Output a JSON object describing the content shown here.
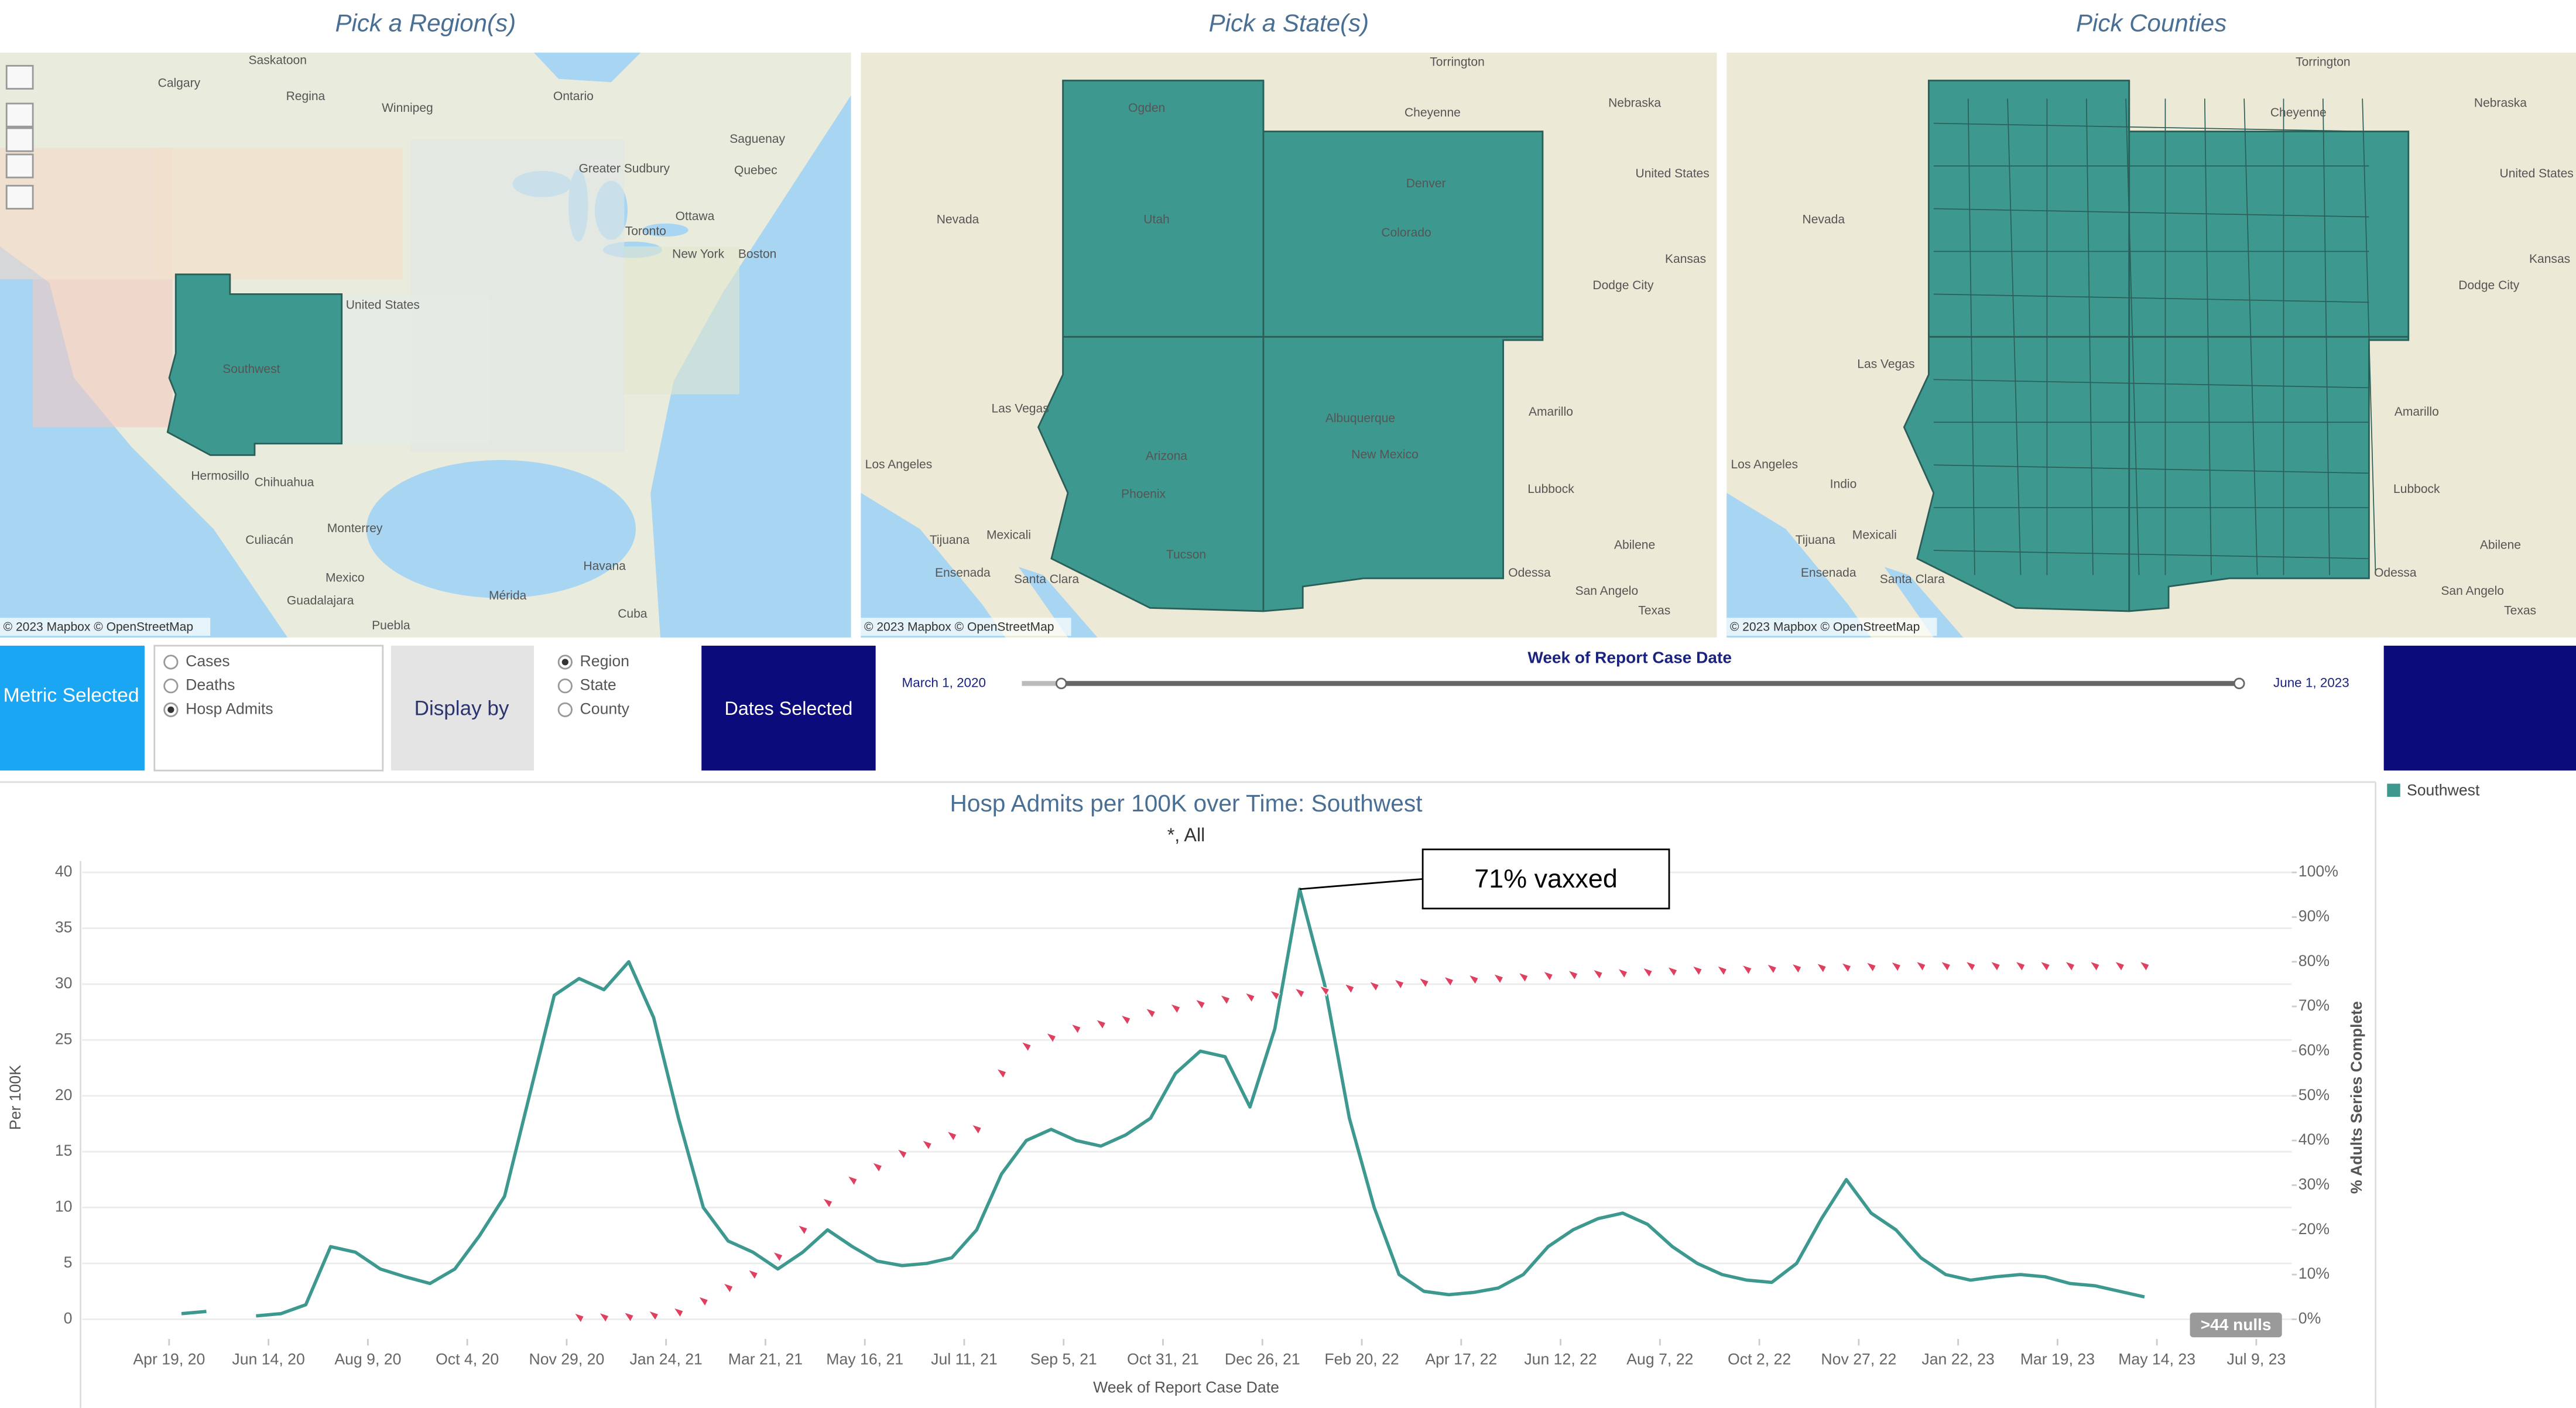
{
  "maps": [
    {
      "title": "Pick a Region(s)",
      "credit": "© 2023 Mapbox © OpenStreetMap",
      "labels": [
        "Calgary",
        "Saskatoon",
        "Regina",
        "Winnipeg",
        "Ontario",
        "Greater Sudbury",
        "Saguenay",
        "Quebec",
        "Toronto",
        "Ottawa",
        "Boston",
        "New York",
        "United States",
        "Southwest",
        "Hermosillo",
        "Chihuahua",
        "Culiacán",
        "Monterrey",
        "Mexico",
        "Guadalajara",
        "Puebla",
        "Mérida",
        "Havana",
        "Cuba"
      ]
    },
    {
      "title": "Pick a State(s)",
      "credit": "© 2023 Mapbox © OpenStreetMap",
      "labels": [
        "Torrington",
        "Nebraska",
        "Cheyenne",
        "United States",
        "Nevada",
        "Utah",
        "Colorado",
        "Denver",
        "Kansas",
        "Las Vegas",
        "Arizona",
        "New Mexico",
        "Albuquerque",
        "Amarillo",
        "Los Angeles",
        "Lubbock",
        "Phoenix",
        "Tucson",
        "Tijuana",
        "Mexicali",
        "Ensenada",
        "Santa Clara",
        "Odessa",
        "Abilene",
        "San Angelo",
        "Texas",
        "Ogden",
        "Dodge City"
      ]
    },
    {
      "title": "Pick Counties",
      "credit": "© 2023 Mapbox © OpenStreetMap",
      "labels": [
        "Torrington",
        "Nebraska",
        "Cheyenne",
        "United States",
        "Nevada",
        "Kansas",
        "Las Vegas",
        "Amarillo",
        "Los Angeles",
        "Lubbock",
        "Tijuana",
        "Mexicali",
        "Ensenada",
        "Santa Clara",
        "Odessa",
        "Abilene",
        "San Angelo",
        "Texas",
        "Dodge City",
        "Indio"
      ]
    }
  ],
  "controls": {
    "metric": {
      "label": "Metric Selected",
      "options": [
        "Cases",
        "Deaths",
        "Hosp Admits"
      ],
      "selected": 2
    },
    "display_by": {
      "label": "Display by",
      "options": [
        "Region",
        "State",
        "County"
      ],
      "selected": 0
    },
    "dates": {
      "label": "Dates Selected",
      "slider_title": "Week of Report Case Date",
      "start": "March 1, 2020",
      "end": "June 1, 2023"
    }
  },
  "chart_data": {
    "type": "line",
    "title": "Hosp Admits per 100K over Time: Southwest",
    "subtitle": "*,  All",
    "xlabel": "Week of Report Case Date",
    "ylabel": "Per 100K",
    "y2label": "% Adults Series Complete",
    "annotation": "71% vaxxed",
    "nulls_indicator": ">44 nulls",
    "x": [
      "2020-04-26",
      "2020-05-10",
      "2020-05-24",
      "2020-06-07",
      "2020-06-21",
      "2020-07-05",
      "2020-07-19",
      "2020-08-02",
      "2020-08-16",
      "2020-08-30",
      "2020-09-13",
      "2020-09-27",
      "2020-10-11",
      "2020-10-25",
      "2020-11-08",
      "2020-11-22",
      "2020-12-06",
      "2020-12-20",
      "2021-01-03",
      "2021-01-17",
      "2021-01-31",
      "2021-02-14",
      "2021-02-28",
      "2021-03-14",
      "2021-03-28",
      "2021-04-11",
      "2021-04-25",
      "2021-05-09",
      "2021-05-23",
      "2021-06-06",
      "2021-06-20",
      "2021-07-04",
      "2021-07-18",
      "2021-08-01",
      "2021-08-15",
      "2021-08-29",
      "2021-09-12",
      "2021-09-26",
      "2021-10-10",
      "2021-10-24",
      "2021-11-07",
      "2021-11-21",
      "2021-12-05",
      "2021-12-19",
      "2022-01-02",
      "2022-01-16",
      "2022-01-30",
      "2022-02-13",
      "2022-02-27",
      "2022-03-13",
      "2022-03-27",
      "2022-04-10",
      "2022-04-24",
      "2022-05-08",
      "2022-05-22",
      "2022-06-05",
      "2022-06-19",
      "2022-07-03",
      "2022-07-17",
      "2022-07-31",
      "2022-08-14",
      "2022-08-28",
      "2022-09-11",
      "2022-09-25",
      "2022-10-09",
      "2022-10-23",
      "2022-11-06",
      "2022-11-20",
      "2022-12-04",
      "2022-12-18",
      "2023-01-01",
      "2023-01-15",
      "2023-01-29",
      "2023-02-12",
      "2023-02-26",
      "2023-03-12",
      "2023-03-26",
      "2023-04-09",
      "2023-04-23",
      "2023-05-07",
      "2023-05-21"
    ],
    "series": [
      {
        "name": "Southwest",
        "color": "#3d9990",
        "values": [
          0.5,
          0.7,
          null,
          0.3,
          0.5,
          1.3,
          6.5,
          6,
          4.5,
          3.8,
          3.2,
          4.5,
          7.5,
          11,
          20,
          29,
          30.5,
          29.5,
          32,
          27,
          18,
          10,
          7,
          6,
          4.5,
          6,
          8,
          6.5,
          5.2,
          4.8,
          5,
          5.5,
          8,
          13,
          16,
          17,
          16,
          15.5,
          16.5,
          18,
          22,
          24,
          23.5,
          19,
          26,
          38.5,
          30,
          18,
          10,
          4,
          2.5,
          2.2,
          2.4,
          2.8,
          4,
          6.5,
          8,
          9,
          9.5,
          8.5,
          6.5,
          5,
          4,
          3.5,
          3.3,
          5,
          9,
          12.5,
          9.5,
          8,
          5.5,
          4,
          3.5,
          3.8,
          4,
          3.8,
          3.2,
          3,
          2.5,
          2,
          null
        ]
      },
      {
        "color": "#e0405f",
        "axis": "y2",
        "marker": "point",
        "values": [
          null,
          null,
          null,
          null,
          null,
          null,
          null,
          null,
          null,
          null,
          null,
          null,
          null,
          null,
          null,
          null,
          0.3,
          0.4,
          0.5,
          0.8,
          1.5,
          4,
          7,
          10,
          14,
          20,
          26,
          31,
          34,
          37,
          39,
          41,
          42.5,
          55,
          61,
          63,
          65,
          66,
          67,
          68.5,
          69.5,
          70.5,
          71.5,
          72,
          72.5,
          73,
          73.5,
          74,
          74.5,
          75,
          75.3,
          75.6,
          76,
          76.2,
          76.5,
          76.8,
          77,
          77.2,
          77.4,
          77.6,
          77.8,
          78,
          78,
          78.2,
          78.4,
          78.5,
          78.6,
          78.7,
          78.8,
          78.9,
          79,
          79,
          79,
          79,
          79,
          79,
          79,
          79,
          79,
          79,
          null
        ]
      }
    ],
    "xlim": [
      "2020-03-01",
      "2023-07-29"
    ],
    "xticks": [
      {
        "value": "2020-04-19",
        "label": "Apr 19, 20"
      },
      {
        "value": "2020-06-14",
        "label": "Jun 14, 20"
      },
      {
        "value": "2020-08-09",
        "label": "Aug 9, 20"
      },
      {
        "value": "2020-10-04",
        "label": "Oct 4, 20"
      },
      {
        "value": "2020-11-29",
        "label": "Nov 29, 20"
      },
      {
        "value": "2021-01-24",
        "label": "Jan 24, 21"
      },
      {
        "value": "2021-03-21",
        "label": "Mar 21, 21"
      },
      {
        "value": "2021-05-16",
        "label": "May 16, 21"
      },
      {
        "value": "2021-07-11",
        "label": "Jul 11, 21"
      },
      {
        "value": "2021-09-05",
        "label": "Sep 5, 21"
      },
      {
        "value": "2021-10-31",
        "label": "Oct 31, 21"
      },
      {
        "value": "2021-12-26",
        "label": "Dec 26, 21"
      },
      {
        "value": "2022-02-20",
        "label": "Feb 20, 22"
      },
      {
        "value": "2022-04-17",
        "label": "Apr 17, 22"
      },
      {
        "value": "2022-06-12",
        "label": "Jun 12, 22"
      },
      {
        "value": "2022-08-07",
        "label": "Aug 7, 22"
      },
      {
        "value": "2022-10-02",
        "label": "Oct 2, 22"
      },
      {
        "value": "2022-11-27",
        "label": "Nov 27, 22"
      },
      {
        "value": "2023-01-22",
        "label": "Jan 22, 23"
      },
      {
        "value": "2023-03-19",
        "label": "Mar 19, 23"
      },
      {
        "value": "2023-05-14",
        "label": "May 14, 23"
      },
      {
        "value": "2023-07-09",
        "label": "Jul 9, 23"
      }
    ],
    "ylim": [
      0,
      40
    ],
    "yticks": [
      0,
      5,
      10,
      15,
      20,
      25,
      30,
      35,
      40
    ],
    "y2lim": [
      0,
      100
    ],
    "y2ticks": [
      {
        "value": 0,
        "label": "0%"
      },
      {
        "value": 10,
        "label": "10%"
      },
      {
        "value": 20,
        "label": "20%"
      },
      {
        "value": 30,
        "label": "30%"
      },
      {
        "value": 40,
        "label": "40%"
      },
      {
        "value": 50,
        "label": "50%"
      },
      {
        "value": 60,
        "label": "60%"
      },
      {
        "value": 70,
        "label": "70%"
      },
      {
        "value": 80,
        "label": "80%"
      },
      {
        "value": 90,
        "label": "90%"
      },
      {
        "value": 100,
        "label": "100%"
      }
    ],
    "grid": true,
    "legend": "right"
  }
}
